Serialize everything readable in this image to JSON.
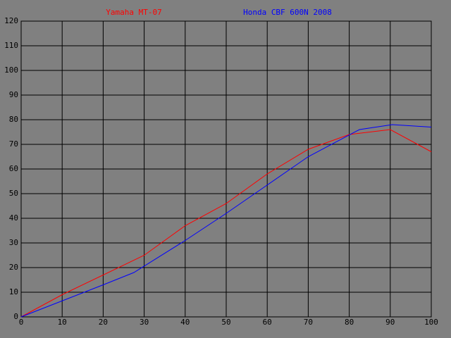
{
  "chart_data": {
    "type": "line",
    "series": [
      {
        "name": "Yamaha MT-07",
        "color": "#ff0000",
        "x": [
          0,
          10,
          20,
          30,
          40,
          50,
          60,
          70,
          80,
          90,
          100
        ],
        "values": [
          0,
          9,
          17,
          25,
          37,
          46,
          58,
          68,
          74,
          76,
          67
        ]
      },
      {
        "name": "Honda CBF 600N 2008",
        "color": "#0000ff",
        "x": [
          0,
          10,
          20,
          27.5,
          40,
          50,
          60,
          70,
          82.5,
          90.5,
          100
        ],
        "values": [
          0,
          6.5,
          13,
          18,
          31,
          42,
          53.5,
          65,
          76,
          78,
          77
        ]
      }
    ],
    "xlim": [
      0,
      100
    ],
    "xticks": [
      0,
      10,
      20,
      30,
      40,
      50,
      60,
      70,
      80,
      90,
      100
    ],
    "ylim": [
      0,
      120
    ],
    "yticks": [
      0,
      10,
      20,
      30,
      40,
      50,
      60,
      70,
      80,
      90,
      100,
      110,
      120
    ],
    "grid": true
  }
}
